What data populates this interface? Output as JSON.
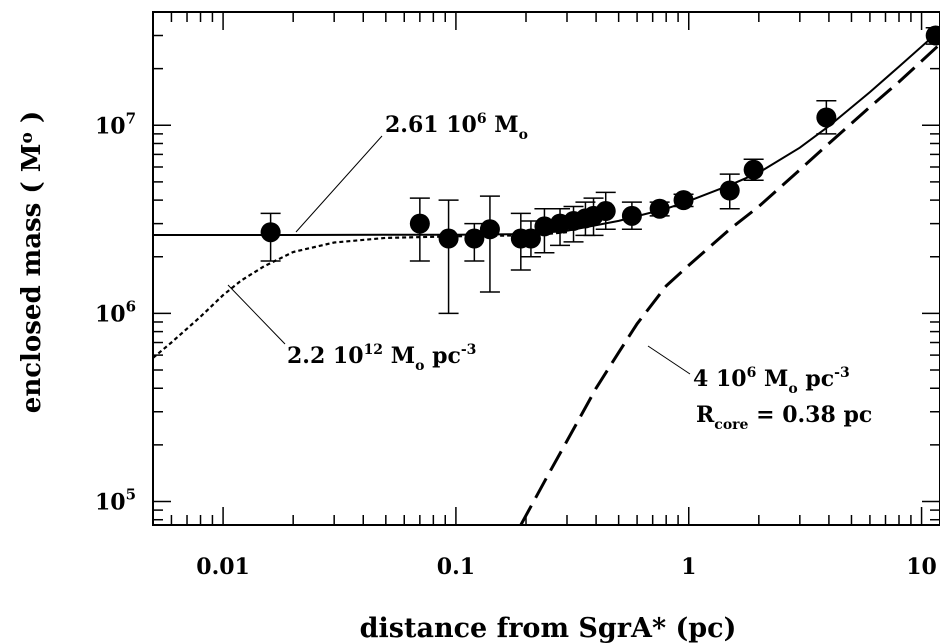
{
  "chart_data": {
    "type": "scatter",
    "title": "",
    "xlabel": "distance from SgrA* (pc)",
    "ylabel_main": "enclosed mass ( M",
    "ylabel_sub": "o",
    "ylabel_tail": " )",
    "x_scale": "log",
    "y_scale": "log",
    "xlim": [
      0.005,
      12
    ],
    "ylim": [
      75000,
      40000000
    ],
    "grid": false,
    "x_ticks": [
      {
        "value": 0.01,
        "label": "0.01"
      },
      {
        "value": 0.1,
        "label": "0.1"
      },
      {
        "value": 1,
        "label": "1"
      },
      {
        "value": 10,
        "label": "10"
      }
    ],
    "y_ticks": [
      {
        "value": 100000,
        "base": "10",
        "exp": "5"
      },
      {
        "value": 1000000,
        "base": "10",
        "exp": "6"
      },
      {
        "value": 10000000,
        "base": "10",
        "exp": "7"
      }
    ],
    "series": [
      {
        "kind": "points",
        "points": [
          {
            "x": 0.016,
            "y": 2700000,
            "lo": 1900000,
            "hi": 3400000
          },
          {
            "x": 0.07,
            "y": 3000000,
            "lo": 1900000,
            "hi": 4100000
          },
          {
            "x": 0.093,
            "y": 2500000,
            "lo": 1000000,
            "hi": 4000000
          },
          {
            "x": 0.12,
            "y": 2500000,
            "lo": 1900000,
            "hi": 3000000
          },
          {
            "x": 0.14,
            "y": 2800000,
            "lo": 1300000,
            "hi": 4200000
          },
          {
            "x": 0.19,
            "y": 2500000,
            "lo": 1700000,
            "hi": 3400000
          },
          {
            "x": 0.21,
            "y": 2500000,
            "lo": 2000000,
            "hi": 3100000
          },
          {
            "x": 0.24,
            "y": 2900000,
            "lo": 2100000,
            "hi": 3600000
          },
          {
            "x": 0.28,
            "y": 3000000,
            "lo": 2300000,
            "hi": 3600000
          },
          {
            "x": 0.32,
            "y": 3100000,
            "lo": 2400000,
            "hi": 3700000
          },
          {
            "x": 0.36,
            "y": 3200000,
            "lo": 2600000,
            "hi": 3900000
          },
          {
            "x": 0.39,
            "y": 3300000,
            "lo": 2600000,
            "hi": 4100000
          },
          {
            "x": 0.44,
            "y": 3500000,
            "lo": 2800000,
            "hi": 4400000
          },
          {
            "x": 0.57,
            "y": 3300000,
            "lo": 2800000,
            "hi": 3900000
          },
          {
            "x": 0.75,
            "y": 3600000,
            "lo": 3300000,
            "hi": 3900000
          },
          {
            "x": 0.95,
            "y": 4000000,
            "lo": 3700000,
            "hi": 4300000
          },
          {
            "x": 1.5,
            "y": 4500000,
            "lo": 3600000,
            "hi": 5500000
          },
          {
            "x": 1.9,
            "y": 5800000,
            "lo": 5100000,
            "hi": 6600000
          },
          {
            "x": 3.9,
            "y": 11000000,
            "lo": 9000000,
            "hi": 13500000
          },
          {
            "x": 11.5,
            "y": 30000000,
            "lo": 27000000,
            "hi": 33000000
          }
        ]
      },
      {
        "kind": "solid",
        "x": [
          0.005,
          0.02,
          0.05,
          0.1,
          0.2,
          0.3,
          0.5,
          0.8,
          1.0,
          1.5,
          2.0,
          3.0,
          4.0,
          6.0,
          8.0,
          12.0
        ],
        "y": [
          2610000,
          2610000,
          2615000,
          2620000,
          2640000,
          2750000,
          3100000,
          3600000,
          3950000,
          4800000,
          5600000,
          7600000,
          9900000,
          15000000,
          20500000,
          32000000
        ]
      },
      {
        "kind": "dotted",
        "x": [
          0.005,
          0.006,
          0.008,
          0.01,
          0.012,
          0.015,
          0.02,
          0.03,
          0.05,
          0.1,
          0.2,
          0.25,
          0.3
        ],
        "y": [
          580000,
          700000,
          960000,
          1250000,
          1500000,
          1780000,
          2120000,
          2380000,
          2520000,
          2570000,
          2600000,
          2650000,
          2700000
        ]
      },
      {
        "kind": "dashed",
        "x": [
          0.19,
          0.25,
          0.3,
          0.4,
          0.5,
          0.6,
          0.8,
          1.0,
          1.5,
          2.0,
          3.0,
          4.0,
          6.0,
          8.0,
          12.0
        ],
        "y": [
          75000,
          140000,
          210000,
          400000,
          620000,
          880000,
          1400000,
          1800000,
          2800000,
          3700000,
          5800000,
          8000000,
          12500000,
          17000000,
          27000000
        ]
      }
    ],
    "annotations": [
      {
        "id": "bh",
        "text": "2.61 10",
        "sup": "6",
        "unit": " M",
        "sub": "o",
        "tail": ""
      },
      {
        "id": "cusp",
        "text": "2.2 10",
        "sup": "12",
        "unit": " M",
        "sub": "o",
        "tail": " pc",
        "sup2": "-3"
      },
      {
        "id": "cluster",
        "text": "4 10",
        "sup": "6",
        "unit": " M",
        "sub": "o",
        "tail": " pc",
        "sup2": "-3"
      },
      {
        "id": "rcore",
        "text": "R",
        "sub": "core",
        "tail": " = 0.38 pc"
      }
    ]
  }
}
